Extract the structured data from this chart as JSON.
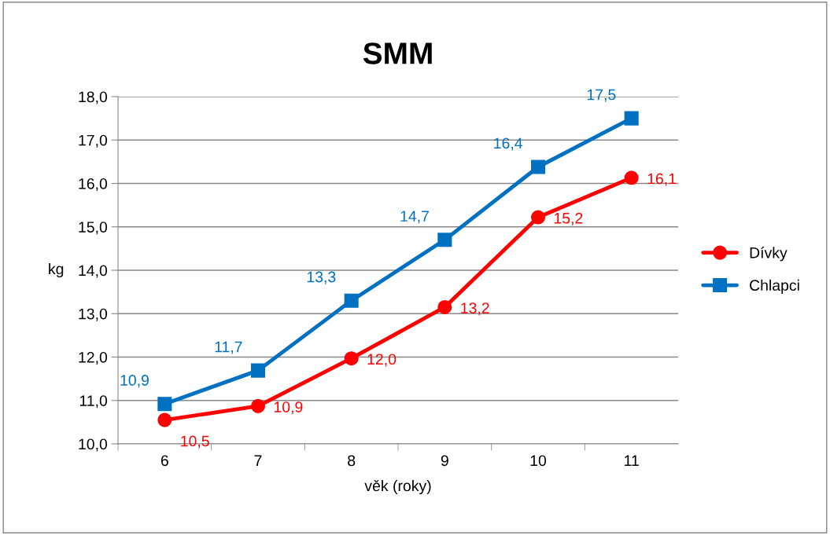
{
  "chart_data": {
    "type": "line",
    "title": "SMM",
    "xlabel": "věk (roky)",
    "ylabel": "kg",
    "categories": [
      "6",
      "7",
      "8",
      "9",
      "10",
      "11"
    ],
    "series": [
      {
        "name": "Dívky",
        "color": "#ff0000",
        "marker": "circle",
        "values": [
          10.55,
          10.87,
          11.97,
          13.15,
          15.22,
          16.13
        ],
        "value_labels": [
          "10,5",
          "10,9",
          "12,0",
          "13,2",
          "15,2",
          "16,1"
        ]
      },
      {
        "name": "Chlapci",
        "color": "#0070c0",
        "marker": "square",
        "values": [
          10.92,
          11.69,
          13.3,
          14.7,
          16.38,
          17.5
        ],
        "value_labels": [
          "10,9",
          "11,7",
          "13,3",
          "14,7",
          "16,4",
          "17,5"
        ]
      }
    ],
    "ylim": [
      10,
      18
    ],
    "yticks": [
      {
        "value": 10,
        "label": "10,0"
      },
      {
        "value": 11,
        "label": "11,0"
      },
      {
        "value": 12,
        "label": "12,0"
      },
      {
        "value": 13,
        "label": "13,0"
      },
      {
        "value": 14,
        "label": "14,0"
      },
      {
        "value": 15,
        "label": "15,0"
      },
      {
        "value": 16,
        "label": "16,0"
      },
      {
        "value": 17,
        "label": "17,0"
      },
      {
        "value": 18,
        "label": "18,0"
      }
    ],
    "grid": "y",
    "legend": "right",
    "line_style": "solid"
  }
}
